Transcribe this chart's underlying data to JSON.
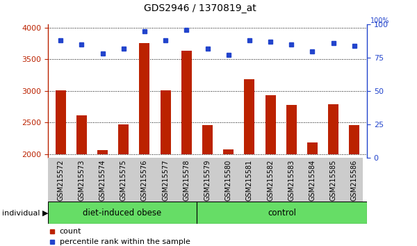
{
  "title": "GDS2946 / 1370819_at",
  "samples": [
    "GSM215572",
    "GSM215573",
    "GSM215574",
    "GSM215575",
    "GSM215576",
    "GSM215577",
    "GSM215578",
    "GSM215579",
    "GSM215580",
    "GSM215581",
    "GSM215582",
    "GSM215583",
    "GSM215584",
    "GSM215585",
    "GSM215586"
  ],
  "counts": [
    3010,
    2610,
    2070,
    2470,
    3760,
    3010,
    3640,
    2460,
    2075,
    3190,
    2930,
    2780,
    2190,
    2790,
    2460
  ],
  "percentiles": [
    88,
    85,
    78,
    82,
    95,
    88,
    96,
    82,
    77,
    88,
    87,
    85,
    80,
    86,
    84
  ],
  "ylim_left": [
    1950,
    4050
  ],
  "ylim_right": [
    0,
    100
  ],
  "yticks_left": [
    2000,
    2500,
    3000,
    3500,
    4000
  ],
  "yticks_right": [
    0,
    25,
    50,
    75,
    100
  ],
  "bar_color": "#bb2200",
  "dot_color": "#2244cc",
  "group1_label": "diet-induced obese",
  "group2_label": "control",
  "group1_count": 7,
  "group2_count": 8,
  "group_bg": "#66dd66",
  "tick_bg": "#cccccc",
  "individual_label": "individual",
  "legend_count": "count",
  "legend_pct": "percentile rank within the sample"
}
